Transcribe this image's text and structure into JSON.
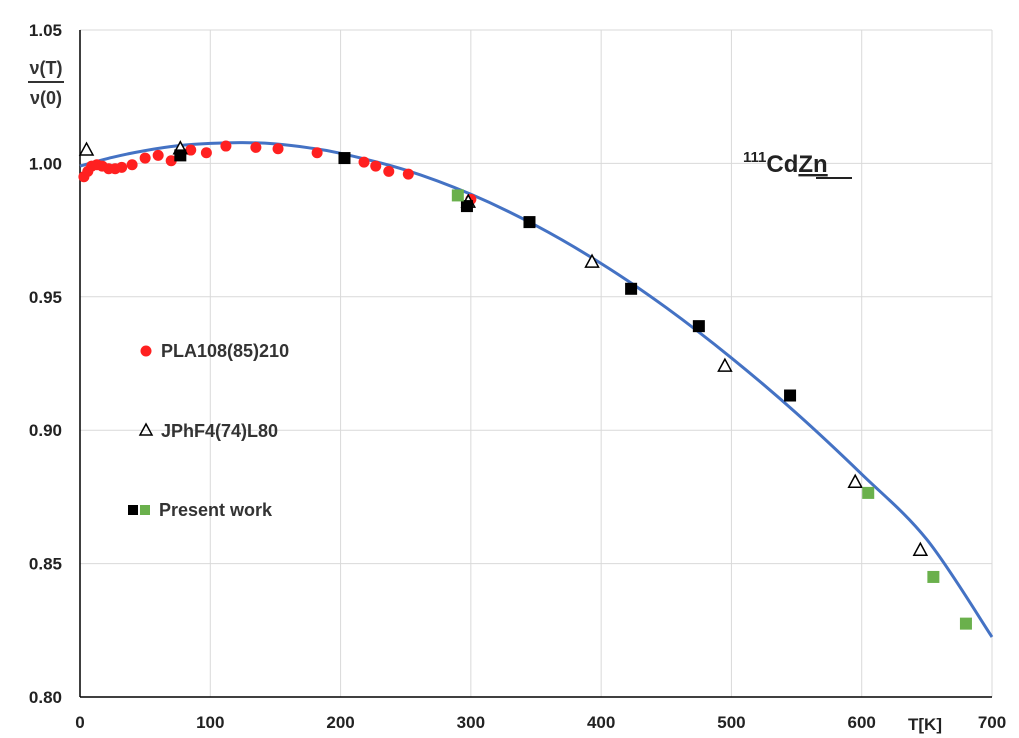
{
  "colors": {
    "fit_line": "#4472C4",
    "pla": "#FF2020",
    "present_black": "#000000",
    "present_green": "#6AB04C",
    "grid": "#D9D9D9",
    "axis": "#000000"
  },
  "chart_data": {
    "type": "scatter",
    "title": {
      "sup": "111",
      "base": "Cd",
      "underlined": "Zn"
    },
    "xlabel": "T[K]",
    "ylabel": {
      "numerator": "ν(T)",
      "denominator": "ν(0)"
    },
    "xlim": [
      0,
      700
    ],
    "ylim": [
      0.8,
      1.05
    ],
    "x_ticks": [
      0,
      100,
      200,
      300,
      400,
      500,
      600,
      700
    ],
    "y_ticks": [
      0.8,
      0.85,
      0.9,
      0.95,
      1.0,
      1.05
    ],
    "x_tick_labels": [
      "0",
      "100",
      "200",
      "300",
      "400",
      "500",
      "600"
    ],
    "y_tick_labels": [
      "0.80",
      "0.85",
      "0.90",
      "0.95",
      "1.00",
      "1.05"
    ],
    "grid": true,
    "legend_position": "left",
    "fit_curve": {
      "x": [
        0,
        25,
        50,
        75,
        100,
        125,
        150,
        175,
        200,
        250,
        300,
        350,
        400,
        450,
        500,
        550,
        600,
        650,
        700
      ],
      "y": [
        0.999,
        1.0023,
        1.0048,
        1.0066,
        1.0075,
        1.0078,
        1.0073,
        1.0059,
        1.0038,
        0.9975,
        0.9884,
        0.9767,
        0.9625,
        0.9459,
        0.9271,
        0.9063,
        0.8835,
        0.859,
        0.8225
      ]
    },
    "series": [
      {
        "name": "PLA108(85)210",
        "marker": "circle",
        "x": [
          3,
          6,
          9,
          13,
          17,
          22,
          27,
          32,
          40,
          50,
          60,
          70,
          85,
          97,
          112,
          135,
          152,
          182,
          218,
          227,
          237,
          252,
          300
        ],
        "y": [
          0.995,
          0.997,
          0.999,
          0.9995,
          0.999,
          0.998,
          0.998,
          0.9985,
          0.9995,
          1.002,
          1.003,
          1.001,
          1.005,
          1.004,
          1.0065,
          1.006,
          1.0055,
          1.004,
          1.0005,
          0.999,
          0.997,
          0.996,
          0.9865
        ]
      },
      {
        "name": "JPhF4(74)L80",
        "marker": "triangle",
        "x": [
          5,
          77,
          298,
          393,
          495,
          595,
          645
        ],
        "y": [
          1.005,
          1.0055,
          0.9855,
          0.963,
          0.924,
          0.8805,
          0.855
        ]
      },
      {
        "name": "Present work",
        "marker": "square",
        "x": [
          77,
          203,
          297,
          345,
          423,
          475,
          545
        ],
        "y": [
          1.003,
          1.002,
          0.984,
          0.978,
          0.953,
          0.939,
          0.913
        ]
      },
      {
        "name": "Present work",
        "marker": "square",
        "x": [
          290,
          605,
          655,
          680
        ],
        "y": [
          0.988,
          0.8765,
          0.845,
          0.8275
        ]
      }
    ]
  }
}
